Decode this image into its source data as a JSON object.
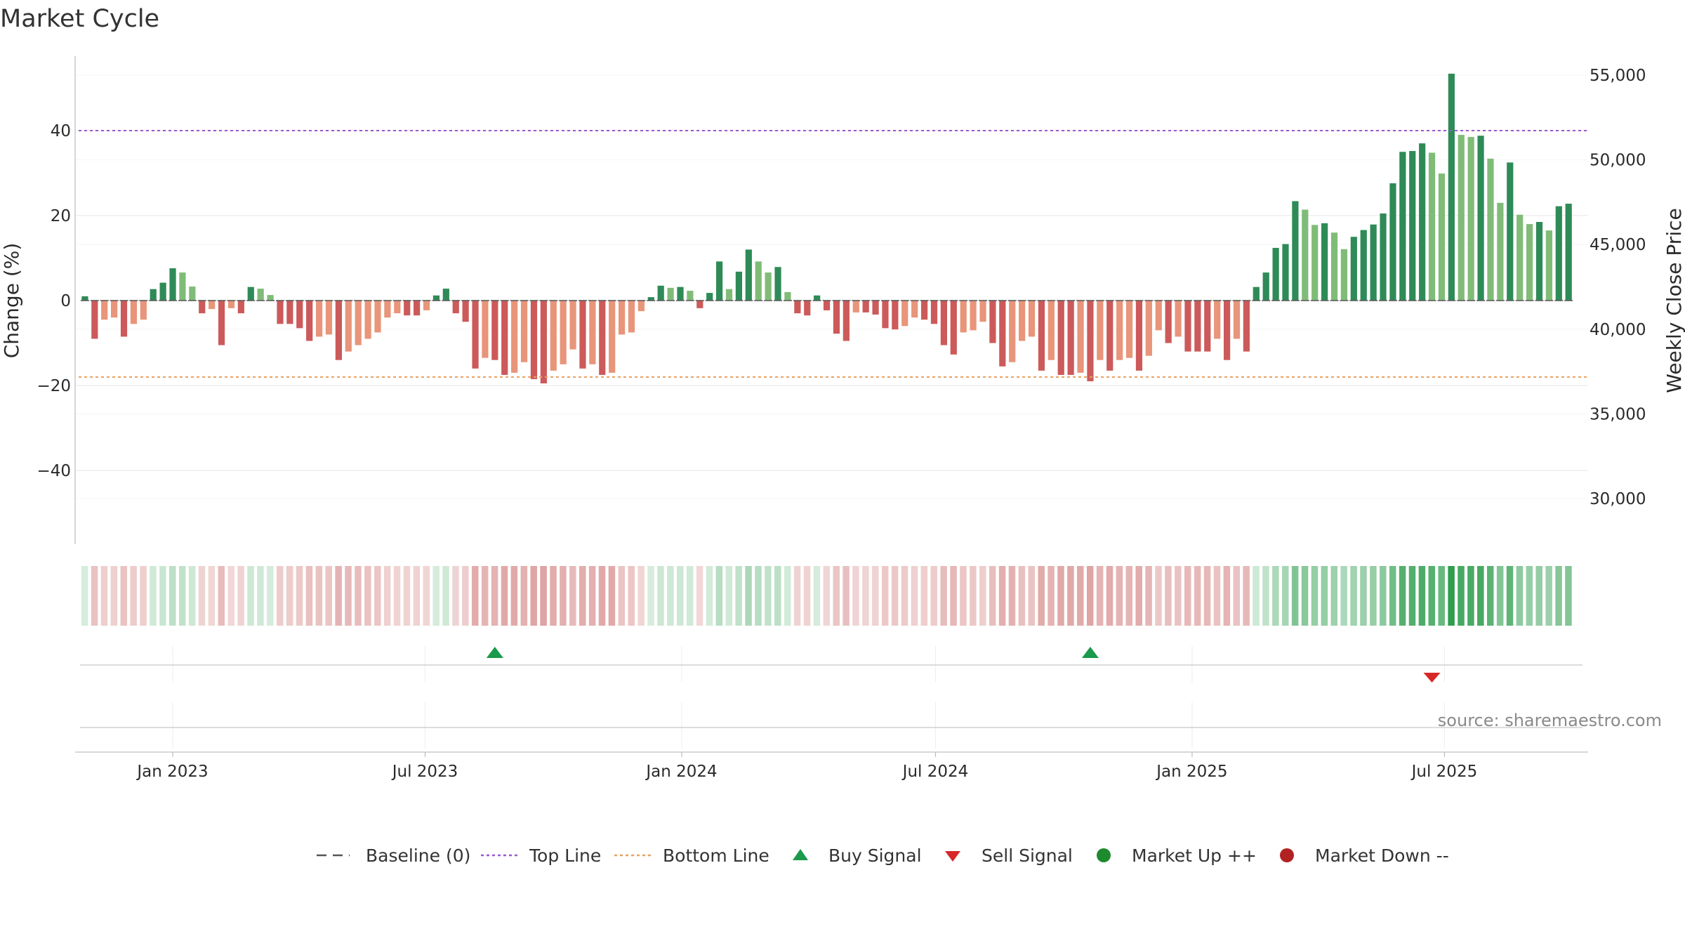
{
  "chart_data": {
    "type": "bar",
    "title": "Market Cycle",
    "y_left_label": "Change (%)",
    "y_right_label": "Weekly Close Price",
    "y_left_ticks": [
      "40",
      "20",
      "0",
      "−40"
    ],
    "y_left_tick_values": [
      40,
      20,
      0,
      -40
    ],
    "y_left_ticks_extra": [
      "−20"
    ],
    "y_left_range": [
      -58,
      58
    ],
    "y_right_ticks": [
      "55,000",
      "50,000",
      "45,000",
      "40,000",
      "35,000",
      "30,000"
    ],
    "y_right_tick_values": [
      55000,
      50000,
      45000,
      40000,
      35000,
      30000
    ],
    "x_ticks": [
      "Jan 2023",
      "Jul 2023",
      "Jan 2024",
      "Jul 2024",
      "Jan 2025",
      "Jul 2025"
    ],
    "x_tick_dates": [
      "2023-01-01",
      "2023-07-01",
      "2024-01-01",
      "2024-07-01",
      "2025-01-01",
      "2025-07-01"
    ],
    "x_range": [
      "2022-10-23",
      "2025-10-12"
    ],
    "first_week": "2022-10-30",
    "top_line": 40,
    "bottom_line": -18,
    "changes": [
      1,
      -9,
      -4.5,
      -4,
      -8.5,
      -5.5,
      -4.5,
      2.7,
      4.2,
      7.6,
      6.6,
      3.3,
      -3,
      -2,
      -10.5,
      -1.8,
      -3,
      3.2,
      2.8,
      1.3,
      -5.5,
      -5.5,
      -6.5,
      -9.5,
      -8.5,
      -8,
      -14,
      -12,
      -10.5,
      -9,
      -7.5,
      -4,
      -3,
      -3.5,
      -3.5,
      -2.3,
      1.2,
      2.8,
      -3,
      -5,
      -16,
      -13.5,
      -14,
      -17.5,
      -17,
      -14.5,
      -18.5,
      -19.5,
      -16.5,
      -15,
      -11.5,
      -16,
      -15,
      -17.5,
      -17,
      -8,
      -7.5,
      -2.5,
      0.8,
      3.5,
      3,
      3.2,
      2.3,
      -1.8,
      1.8,
      9.2,
      2.7,
      6.8,
      12,
      9.2,
      6.6,
      7.9,
      2,
      -3,
      -3.5,
      1.2,
      -2.3,
      -7.8,
      -9.5,
      -2.8,
      -2.8,
      -3.3,
      -6.5,
      -6.8,
      -6,
      -4,
      -4.5,
      -5.5,
      -10.5,
      -12.7,
      -7.5,
      -7,
      -5,
      -10,
      -15.5,
      -14.5,
      -9.5,
      -8.5,
      -16.5,
      -14,
      -17.5,
      -17.5,
      -17,
      -19,
      -14,
      -16.5,
      -14,
      -13.5,
      -16.5,
      -13,
      -7,
      -10,
      -8.5,
      -12,
      -12,
      -12,
      -9,
      -14,
      -9,
      -12,
      3.2,
      6.6,
      12.4,
      13.3,
      23.4,
      21.4,
      17.8,
      18.2,
      16,
      12.1,
      15,
      16.6,
      17.9,
      20.5,
      27.6,
      35,
      35.2,
      37,
      34.8,
      29.9,
      53.4,
      39,
      38.5,
      38.8,
      33.4,
      23,
      32.5,
      20.2,
      18,
      18.5,
      16.5,
      22.2,
      22.8
    ],
    "buy_signal_dates": [
      "2023-08-20",
      "2024-10-20"
    ],
    "sell_signal_dates": [
      "2025-06-22"
    ],
    "legend": [
      "Baseline (0)",
      "Top Line",
      "Bottom Line",
      "Buy Signal",
      "Sell Signal",
      "Market Up ++",
      "Market Down --"
    ],
    "legend_position": "bottom-center",
    "colors": {
      "bar_up_dark": "#2e8b57",
      "bar_up_light": "#80bc78",
      "bar_down_dark": "#cc5a5a",
      "bar_down_light": "#e8957a",
      "top_line": "#9b59d0",
      "bottom_line": "#e8a060",
      "baseline": "#555555",
      "buy_signal": "#1a9a4a",
      "sell_signal": "#d62828",
      "market_up": "#1e8a2e",
      "market_down": "#b22222"
    },
    "source": "source: sharemaestro.com"
  }
}
